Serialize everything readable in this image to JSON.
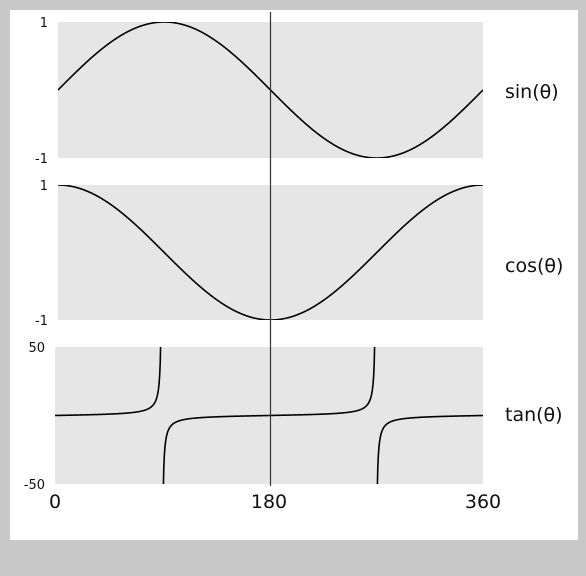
{
  "chart_data": {
    "type": "line",
    "x_unit": "degrees",
    "shared_xlim": [
      0,
      360
    ],
    "x_ticks": [
      0,
      180,
      360
    ],
    "x_tick_labels": [
      "0",
      "180",
      "360"
    ],
    "vertical_marker_x": 180,
    "grid": false,
    "panels": [
      {
        "series_name": "sin(θ)",
        "label": "sin(θ)",
        "function": "sin",
        "ylim": [
          -1,
          1
        ],
        "y_ticks": [
          1,
          -1
        ],
        "y_tick_labels": [
          "1",
          "-1"
        ],
        "x": [
          0,
          30,
          60,
          90,
          120,
          150,
          180,
          210,
          240,
          270,
          300,
          330,
          360
        ],
        "y": [
          0,
          0.5,
          0.866,
          1,
          0.866,
          0.5,
          0,
          -0.5,
          -0.866,
          -1,
          -0.866,
          -0.5,
          0
        ]
      },
      {
        "series_name": "cos(θ)",
        "label": "cos(θ)",
        "function": "cos",
        "ylim": [
          -1,
          1
        ],
        "y_ticks": [
          1,
          -1
        ],
        "y_tick_labels": [
          "1",
          "-1"
        ],
        "x": [
          0,
          30,
          60,
          90,
          120,
          150,
          180,
          210,
          240,
          270,
          300,
          330,
          360
        ],
        "y": [
          1,
          0.866,
          0.5,
          0,
          -0.5,
          -0.866,
          -1,
          -0.866,
          -0.5,
          0,
          0.5,
          0.866,
          1
        ]
      },
      {
        "series_name": "tan(θ)",
        "label": "tan(θ)",
        "function": "tan",
        "ylim": [
          -50,
          50
        ],
        "y_ticks": [
          50,
          -50
        ],
        "y_tick_labels": [
          "50",
          "-50"
        ],
        "x": [
          0,
          30,
          60,
          80,
          85,
          88,
          92,
          95,
          100,
          120,
          150,
          180,
          210,
          240,
          260,
          265,
          268,
          272,
          275,
          280,
          300,
          330,
          360
        ],
        "y": [
          0,
          0.577,
          1.732,
          5.671,
          11.43,
          28.64,
          -28.64,
          -11.43,
          -5.671,
          -1.732,
          -0.577,
          0,
          0.577,
          1.732,
          5.671,
          11.43,
          28.64,
          -28.64,
          -11.43,
          -5.671,
          -1.732,
          -0.577,
          0
        ],
        "asymptotes": [
          90,
          270
        ]
      }
    ]
  },
  "colors": {
    "outer_background": "#c8c8c8",
    "figure_background": "#ffffff",
    "panel_background": "#e6e6e6",
    "curve": "#000000",
    "marker_line": "#333333",
    "text": "#111111"
  }
}
